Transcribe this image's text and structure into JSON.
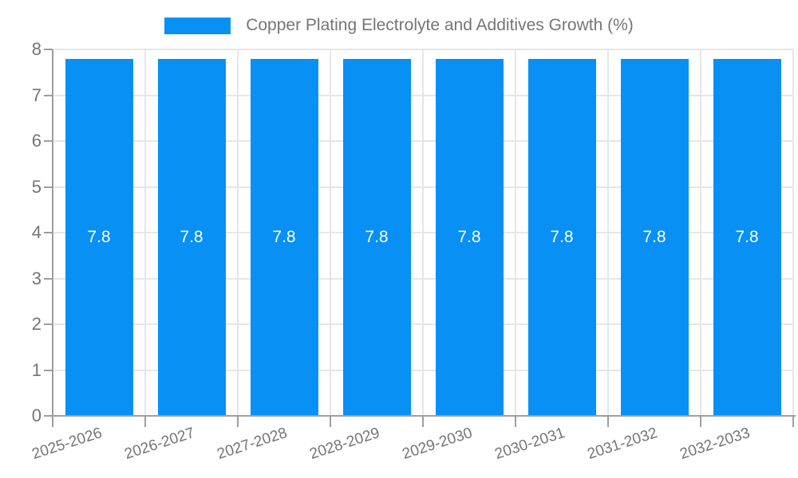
{
  "legend": {
    "label": "Copper Plating Electrolyte and Additives Growth (%)"
  },
  "chart_data": {
    "type": "bar",
    "title": "Copper Plating Electrolyte and Additives Growth (%)",
    "categories": [
      "2025-2026",
      "2026-2027",
      "2027-2028",
      "2028-2029",
      "2029-2030",
      "2030-2031",
      "2031-2032",
      "2032-2033"
    ],
    "series": [
      {
        "name": "Copper Plating Electrolyte and Additives Growth (%)",
        "values": [
          7.8,
          7.8,
          7.8,
          7.8,
          7.8,
          7.8,
          7.8,
          7.8
        ]
      }
    ],
    "bar_labels": [
      "7.8",
      "7.8",
      "7.8",
      "7.8",
      "7.8",
      "7.8",
      "7.8",
      "7.8"
    ],
    "xlabel": "",
    "ylabel": "",
    "ylim": [
      0,
      8
    ],
    "yticks": [
      0,
      1,
      2,
      3,
      4,
      5,
      6,
      7,
      8
    ],
    "grid": true,
    "legend_position": "top",
    "colors": {
      "bar": "#0890F5",
      "bar_value_text": "#FFFFFF",
      "axis_text": "#757575",
      "axis_line": "#9E9E9E",
      "grid_line": "#E6E6E6",
      "title_text": "#757575"
    }
  }
}
